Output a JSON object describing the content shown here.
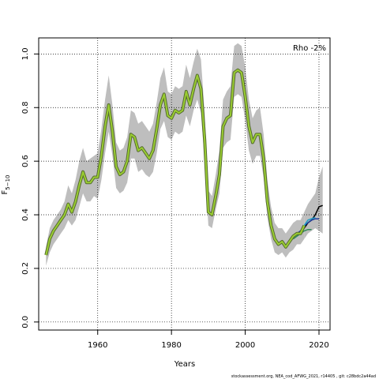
{
  "chart_data": {
    "type": "line",
    "xlabel": "Years",
    "ylabel": "F",
    "ylabel_subscript": "5−10",
    "xlim": [
      1944,
      2023
    ],
    "ylim": [
      -0.03,
      1.06
    ],
    "xticks": [
      1960,
      1980,
      2000,
      2020
    ],
    "yticks": [
      0.0,
      0.2,
      0.4,
      0.6,
      0.8,
      1.0
    ],
    "grid": "dotted",
    "annotation": "Rho -2%",
    "footnote": "stockassessment.org,  NEA_cod_AFWG_2021,  r14405 ,  git:  c28bdc2a44ad",
    "colors": {
      "band": "#bebebe",
      "main": "#9acd32",
      "main_edge": "#556b2f",
      "peels": [
        "#000000",
        "#1e3c9e",
        "#1fa0c8",
        "#2e8b57"
      ]
    },
    "main_series": {
      "x": [
        1946,
        1947,
        1948,
        1949,
        1950,
        1951,
        1952,
        1953,
        1954,
        1955,
        1956,
        1957,
        1958,
        1959,
        1960,
        1961,
        1962,
        1963,
        1964,
        1965,
        1966,
        1967,
        1968,
        1969,
        1970,
        1971,
        1972,
        1973,
        1974,
        1975,
        1976,
        1977,
        1978,
        1979,
        1980,
        1981,
        1982,
        1983,
        1984,
        1985,
        1986,
        1987,
        1988,
        1989,
        1990,
        1991,
        1992,
        1993,
        1994,
        1995,
        1996,
        1997,
        1998,
        1999,
        2000,
        2001,
        2002,
        2003,
        2004,
        2005,
        2006,
        2007,
        2008,
        2009,
        2010,
        2011,
        2012,
        2013,
        2014,
        2015,
        2016
      ],
      "y": [
        0.25,
        0.31,
        0.34,
        0.36,
        0.38,
        0.4,
        0.44,
        0.41,
        0.45,
        0.51,
        0.56,
        0.52,
        0.52,
        0.54,
        0.54,
        0.62,
        0.73,
        0.81,
        0.71,
        0.58,
        0.55,
        0.56,
        0.6,
        0.7,
        0.69,
        0.64,
        0.65,
        0.63,
        0.61,
        0.64,
        0.72,
        0.81,
        0.85,
        0.77,
        0.76,
        0.79,
        0.78,
        0.79,
        0.86,
        0.81,
        0.87,
        0.92,
        0.87,
        0.68,
        0.41,
        0.4,
        0.47,
        0.55,
        0.73,
        0.76,
        0.77,
        0.93,
        0.94,
        0.93,
        0.84,
        0.73,
        0.67,
        0.7,
        0.7,
        0.61,
        0.45,
        0.36,
        0.31,
        0.29,
        0.3,
        0.28,
        0.3,
        0.32,
        0.33,
        0.33,
        0.36
      ]
    },
    "band_upper": [
      0.28,
      0.35,
      0.38,
      0.4,
      0.42,
      0.45,
      0.51,
      0.48,
      0.53,
      0.6,
      0.65,
      0.6,
      0.61,
      0.62,
      0.63,
      0.72,
      0.83,
      0.92,
      0.81,
      0.67,
      0.64,
      0.65,
      0.69,
      0.79,
      0.78,
      0.74,
      0.75,
      0.73,
      0.71,
      0.74,
      0.82,
      0.91,
      0.95,
      0.86,
      0.85,
      0.88,
      0.87,
      0.88,
      0.96,
      0.91,
      0.97,
      1.02,
      0.98,
      0.78,
      0.49,
      0.47,
      0.55,
      0.64,
      0.83,
      0.86,
      0.88,
      1.03,
      1.04,
      1.03,
      0.95,
      0.83,
      0.76,
      0.79,
      0.8,
      0.7,
      0.53,
      0.43,
      0.37,
      0.35,
      0.35,
      0.33,
      0.35,
      0.37,
      0.38,
      0.38,
      0.41
    ],
    "band_lower": [
      0.21,
      0.26,
      0.29,
      0.31,
      0.33,
      0.35,
      0.38,
      0.36,
      0.38,
      0.43,
      0.48,
      0.45,
      0.45,
      0.47,
      0.46,
      0.53,
      0.63,
      0.71,
      0.62,
      0.5,
      0.48,
      0.49,
      0.52,
      0.61,
      0.61,
      0.56,
      0.57,
      0.55,
      0.54,
      0.56,
      0.63,
      0.72,
      0.75,
      0.69,
      0.68,
      0.71,
      0.7,
      0.71,
      0.77,
      0.73,
      0.79,
      0.83,
      0.78,
      0.6,
      0.36,
      0.35,
      0.42,
      0.48,
      0.65,
      0.67,
      0.68,
      0.84,
      0.85,
      0.84,
      0.75,
      0.64,
      0.59,
      0.62,
      0.62,
      0.54,
      0.39,
      0.31,
      0.26,
      0.25,
      0.26,
      0.24,
      0.26,
      0.27,
      0.29,
      0.29,
      0.31
    ],
    "tail_band": {
      "x": [
        2016,
        2017,
        2018,
        2019,
        2020,
        2021
      ],
      "upper": [
        0.41,
        0.44,
        0.46,
        0.48,
        0.54,
        0.58
      ],
      "lower": [
        0.31,
        0.33,
        0.34,
        0.35,
        0.34,
        0.33
      ]
    },
    "peels": [
      {
        "x": [
          2015,
          2016,
          2017,
          2018,
          2019,
          2020,
          2021
        ],
        "y": [
          0.33,
          0.35,
          0.37,
          0.38,
          0.4,
          0.43,
          0.435
        ]
      },
      {
        "x": [
          2014,
          2015,
          2016,
          2017,
          2018,
          2019,
          2020
        ],
        "y": [
          0.33,
          0.34,
          0.36,
          0.37,
          0.38,
          0.385,
          0.385
        ]
      },
      {
        "x": [
          2014,
          2015,
          2016,
          2017,
          2018,
          2019
        ],
        "y": [
          0.32,
          0.33,
          0.36,
          0.38,
          0.385,
          0.39
        ]
      },
      {
        "x": [
          2013,
          2014,
          2015,
          2016,
          2017,
          2018
        ],
        "y": [
          0.31,
          0.32,
          0.33,
          0.34,
          0.345,
          0.345
        ]
      }
    ]
  }
}
